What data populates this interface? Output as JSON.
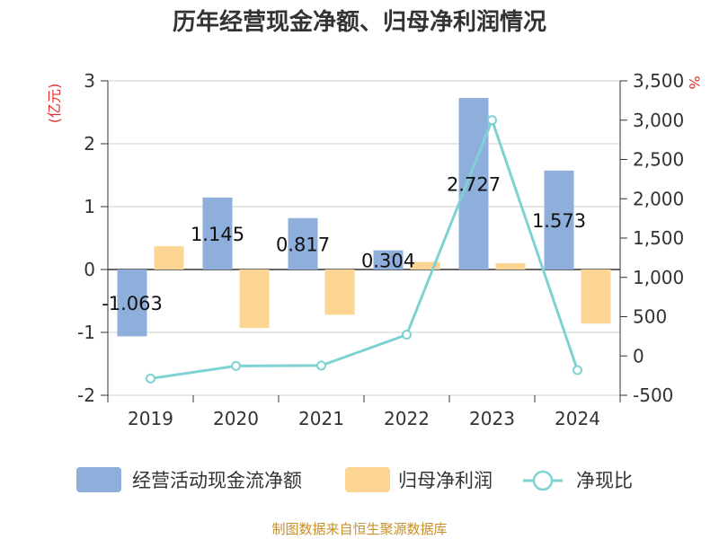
{
  "chart_data": {
    "type": "bar",
    "title": "历年经营现金净额、归母净利润情况",
    "categories": [
      "2019",
      "2020",
      "2021",
      "2022",
      "2023",
      "2024"
    ],
    "left_axis": {
      "unit": "(亿元)",
      "ticks": [
        "3",
        "2",
        "1",
        "0",
        "-1",
        "-2"
      ],
      "range": [
        -2,
        3
      ]
    },
    "right_axis": {
      "unit": "%",
      "ticks": [
        "3,500",
        "3,000",
        "2,500",
        "2,000",
        "1,500",
        "1,000",
        "500",
        "0",
        "-500"
      ],
      "range": [
        -500,
        3500
      ]
    },
    "series": [
      {
        "name": "经营活动现金流净额",
        "kind": "bar",
        "axis": "left",
        "color": "#8eaedc",
        "values": [
          -1.063,
          1.145,
          0.817,
          0.304,
          2.727,
          1.573
        ],
        "labels": [
          "-1.063",
          "1.145",
          "0.817",
          "0.304",
          "2.727",
          "1.573"
        ]
      },
      {
        "name": "归母净利润",
        "kind": "bar",
        "axis": "left",
        "color": "#fdd592",
        "values": [
          0.37,
          -0.93,
          -0.72,
          0.12,
          0.1,
          -0.86
        ]
      },
      {
        "name": "净现比",
        "kind": "line",
        "axis": "right",
        "color": "#7fd2d4",
        "values": [
          -287,
          -127,
          -122,
          270,
          3000,
          -180
        ]
      }
    ],
    "grid": true,
    "legend": "bottom"
  },
  "footer": {
    "source": "制图数据来自恒生聚源数据库"
  }
}
